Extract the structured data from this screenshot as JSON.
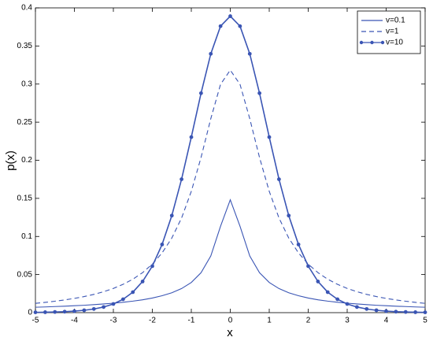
{
  "chart_data": {
    "type": "line",
    "xlabel": "x",
    "ylabel": "p(x)",
    "x": [
      -5,
      -4.75,
      -4.5,
      -4.25,
      -4,
      -3.75,
      -3.5,
      -3.25,
      -3,
      -2.75,
      -2.5,
      -2.25,
      -2,
      -1.75,
      -1.5,
      -1.25,
      -1,
      -0.75,
      -0.5,
      -0.25,
      0,
      0.25,
      0.5,
      0.75,
      1,
      1.25,
      1.5,
      1.75,
      2,
      2.25,
      2.5,
      2.75,
      3,
      3.25,
      3.5,
      3.75,
      4,
      4.25,
      4.5,
      4.75,
      5
    ],
    "series": [
      {
        "name": "v=0.1",
        "color": "#3a55b4",
        "dash": "solid",
        "marker": "none",
        "values": [
          0.0071,
          0.0075,
          0.008,
          0.0085,
          0.0091,
          0.0097,
          0.0105,
          0.0114,
          0.0124,
          0.0136,
          0.0151,
          0.0169,
          0.0192,
          0.0222,
          0.0261,
          0.0316,
          0.0396,
          0.0524,
          0.0744,
          0.1134,
          0.1481,
          0.1134,
          0.0744,
          0.0524,
          0.0396,
          0.0316,
          0.0261,
          0.0222,
          0.0192,
          0.0169,
          0.0151,
          0.0136,
          0.0124,
          0.0114,
          0.0105,
          0.0097,
          0.0091,
          0.0085,
          0.008,
          0.0075,
          0.0071
        ]
      },
      {
        "name": "v=1",
        "color": "#3a55b4",
        "dash": "dashed",
        "marker": "none",
        "values": [
          0.0122,
          0.0135,
          0.015,
          0.0167,
          0.0187,
          0.0211,
          0.024,
          0.0275,
          0.0318,
          0.0372,
          0.0439,
          0.0525,
          0.0637,
          0.0784,
          0.0979,
          0.1242,
          0.1592,
          0.2037,
          0.2546,
          0.2996,
          0.3183,
          0.2996,
          0.2546,
          0.2037,
          0.1592,
          0.1242,
          0.0979,
          0.0784,
          0.0637,
          0.0525,
          0.0439,
          0.0372,
          0.0318,
          0.0275,
          0.024,
          0.0211,
          0.0187,
          0.0167,
          0.015,
          0.0135,
          0.0122
        ]
      },
      {
        "name": "v=10",
        "color": "#3a55b4",
        "dash": "solid",
        "marker": "dot",
        "values": [
          0.0004,
          0.0006,
          0.0009,
          0.0013,
          0.002,
          0.0031,
          0.0048,
          0.0074,
          0.0114,
          0.0176,
          0.0269,
          0.0409,
          0.0611,
          0.0895,
          0.1274,
          0.1751,
          0.2304,
          0.288,
          0.3397,
          0.376,
          0.3891,
          0.376,
          0.3397,
          0.288,
          0.2304,
          0.1751,
          0.1274,
          0.0895,
          0.0611,
          0.0409,
          0.0269,
          0.0176,
          0.0114,
          0.0074,
          0.0048,
          0.0031,
          0.002,
          0.0013,
          0.0009,
          0.0006,
          0.0004
        ]
      }
    ],
    "xlim": [
      -5,
      5
    ],
    "xticks": [
      -5,
      -4,
      -3,
      -2,
      -1,
      0,
      1,
      2,
      3,
      4,
      5
    ],
    "ylim": [
      0,
      0.4
    ],
    "yticks": [
      0,
      0.05,
      0.1,
      0.15,
      0.2,
      0.25,
      0.3,
      0.35,
      0.4
    ],
    "grid": false,
    "legend": "upper right"
  }
}
